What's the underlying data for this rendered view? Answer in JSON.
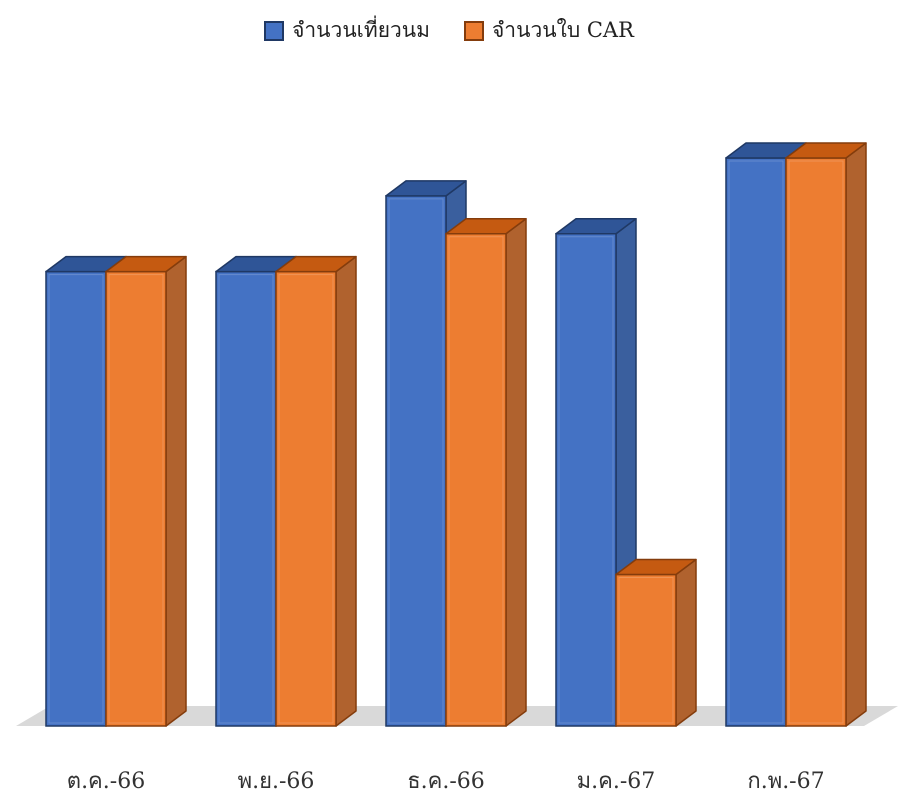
{
  "chart_data": {
    "type": "bar",
    "subtype": "clustered-3d-column",
    "categories": [
      "ต.ค.-66",
      "พ.ย.-66",
      "ธ.ค.-66",
      "ม.ค.-67",
      "ก.พ.-67"
    ],
    "series": [
      {
        "name": "จำนวนเที่ยวนม",
        "values": [
          12,
          12,
          14,
          13,
          15
        ],
        "color": "#4472C4",
        "side_color": "#3A5F9E",
        "top_color": "#2F5597",
        "edge_color": "#1F3864"
      },
      {
        "name": "จำนวนใบ CAR",
        "values": [
          12,
          12,
          13,
          4,
          15
        ],
        "color": "#ED7D31",
        "side_color": "#B0622E",
        "top_color": "#C55A11",
        "edge_color": "#843C0C"
      }
    ],
    "ylim": [
      0,
      15
    ],
    "grid": false,
    "legend": "top-center",
    "floor_color": "#D9D9D9"
  }
}
